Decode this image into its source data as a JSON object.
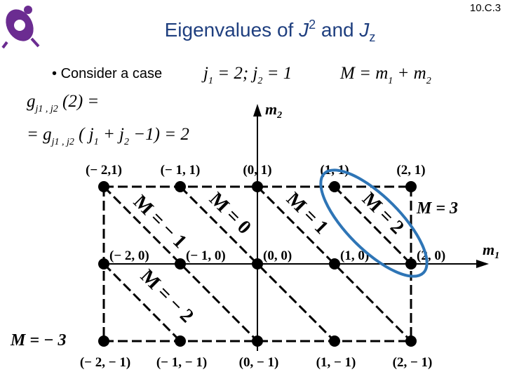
{
  "slide_number": "10.C.3",
  "title": [
    "Eigenvalues of ",
    "J",
    "2",
    " and ",
    "J",
    "z"
  ],
  "bullet": "Consider a case",
  "equations": [
    [
      {
        "text": "j"
      },
      {
        "sub": "1"
      },
      {
        "text": " = 2; j"
      },
      {
        "sub": "2"
      },
      {
        "text": " = 1"
      }
    ],
    [
      {
        "text": "M = m"
      },
      {
        "sub": "1"
      },
      {
        "text": " + m"
      },
      {
        "sub": "2"
      }
    ],
    [
      {
        "text": "g"
      },
      {
        "sub": "j1 , j2"
      },
      {
        "text": " (2) ="
      }
    ],
    [
      {
        "text": "= g"
      },
      {
        "sub": "j1 , j2"
      },
      {
        "text": " ( j"
      },
      {
        "sub": "1"
      },
      {
        "text": " + j"
      },
      {
        "sub": "2"
      },
      {
        "text": " −1) = 2"
      }
    ]
  ],
  "diagram": {
    "x_axis_label": {
      "text": "m",
      "sub": "1"
    },
    "y_axis_label": {
      "text": "m",
      "sub": "2"
    },
    "points": [
      "(− 2,1)",
      "(− 1, 1)",
      "(0, 1)",
      "(1, 1)",
      "(2, 1)",
      "(− 2, 0)",
      "(− 1, 0)",
      "(0, 0)",
      "(1, 0)",
      "(2, 0)",
      "(− 2, − 1)",
      "(− 1, − 1)",
      "(0, − 1)",
      "(1, − 1)",
      "(2, − 1)"
    ],
    "m_lines": [
      "M = − 3",
      "M = − 2",
      "M = − 1",
      "M = 0",
      "M = 1",
      "M = 2",
      "M = 3"
    ]
  }
}
